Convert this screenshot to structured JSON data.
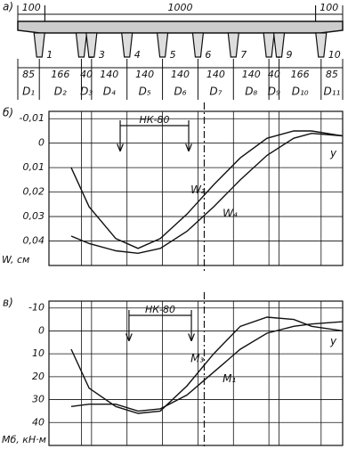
{
  "diagram": {
    "panel": "а)",
    "top_dims": [
      100,
      1000,
      100
    ],
    "bottom_dims": [
      85,
      166,
      40,
      140,
      140,
      140,
      140,
      140,
      40,
      166,
      85
    ],
    "beams": [
      "1",
      "2",
      "3",
      "4",
      "5",
      "6",
      "7",
      "8",
      "9",
      "10"
    ],
    "cells": [
      "D₁",
      "D₂",
      "D₃",
      "D₄",
      "D₅",
      "D₆",
      "D₇",
      "D₈",
      "D₉",
      "D₁₀",
      "D₁₁"
    ]
  },
  "chart_data": [
    {
      "type": "line",
      "panel": "б)",
      "ylabel": "W, см",
      "xlabel": "y",
      "invert_y": true,
      "x": [
        91,
        164,
        273,
        364,
        455,
        564,
        673,
        782,
        891,
        1000,
        1073,
        1200
      ],
      "xlim": [
        0,
        1200
      ],
      "ylim": [
        -0.013,
        0.05
      ],
      "yticks": [
        {
          "value": -0.01,
          "label": "-0,01"
        },
        0,
        {
          "value": 0.01,
          "label": "0,01"
        },
        {
          "value": 0.02,
          "label": "0,02"
        },
        {
          "value": 0.03,
          "label": "0,03"
        },
        {
          "value": 0.04,
          "label": "0,04"
        }
      ],
      "load": {
        "label": "НК-80",
        "x": [
          291,
          571
        ]
      },
      "series": [
        {
          "name": "W₃",
          "color": "#111111",
          "values": [
            0.01,
            0.026,
            0.039,
            0.043,
            0.039,
            0.029,
            0.017,
            0.006,
            -0.002,
            -0.005,
            -0.005,
            -0.003
          ]
        },
        {
          "name": "W₄",
          "color": "#111111",
          "values": [
            0.038,
            0.041,
            0.044,
            0.045,
            0.043,
            0.036,
            0.026,
            0.015,
            0.005,
            -0.002,
            -0.004,
            -0.003
          ]
        }
      ]
    },
    {
      "type": "line",
      "panel": "в)",
      "ylabel": "Mб, кН·м",
      "xlabel": "y",
      "invert_y": true,
      "x": [
        91,
        164,
        273,
        364,
        455,
        564,
        673,
        782,
        891,
        1000,
        1073,
        1200
      ],
      "xlim": [
        0,
        1200
      ],
      "ylim": [
        -13,
        50
      ],
      "yticks": [
        -10,
        0,
        10,
        20,
        30,
        40
      ],
      "load": {
        "label": "НК-80",
        "x": [
          327,
          582
        ]
      },
      "series": [
        {
          "name": "M₃",
          "color": "#111111",
          "values": [
            8,
            25,
            33,
            36,
            35,
            24,
            10,
            -2,
            -6,
            -5,
            -2,
            0
          ]
        },
        {
          "name": "M₁",
          "color": "#111111",
          "values": [
            33,
            32,
            32,
            35,
            34,
            28,
            18,
            8,
            1,
            -2,
            -3,
            -4
          ]
        }
      ]
    }
  ]
}
